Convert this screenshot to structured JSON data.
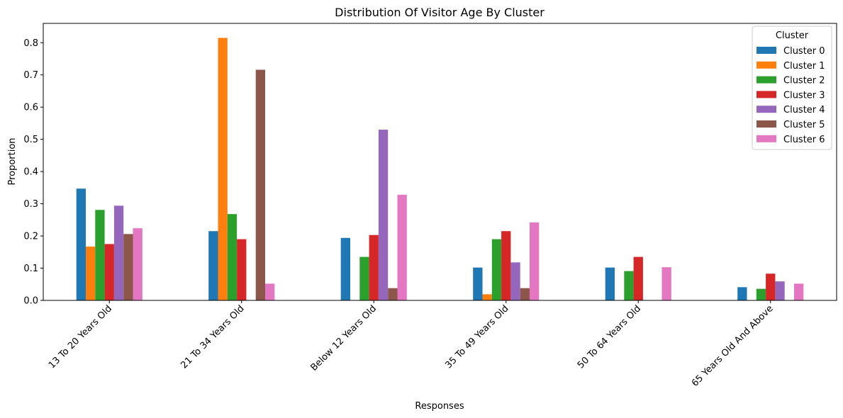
{
  "chart_data": {
    "type": "bar",
    "title": "Distribution Of Visitor Age By Cluster",
    "xlabel": "Responses",
    "ylabel": "Proportion",
    "ylim": [
      0,
      0.86
    ],
    "yticks": [
      "0.0",
      "0.1",
      "0.2",
      "0.3",
      "0.4",
      "0.5",
      "0.6",
      "0.7",
      "0.8"
    ],
    "categories": [
      "13 To 20 Years Old",
      "21 To 34 Years Old",
      "Below 12 Years Old",
      "35 To 49 Years Old",
      "50 To 64 Years Old",
      "65 Years Old And Above"
    ],
    "legend": {
      "title": "Cluster",
      "position": "top-right"
    },
    "grid": false,
    "series": [
      {
        "name": "Cluster 0",
        "color": "#1f77b4",
        "values": [
          0.347,
          0.215,
          0.194,
          0.102,
          0.102,
          0.041
        ]
      },
      {
        "name": "Cluster 1",
        "color": "#ff7f0e",
        "values": [
          0.167,
          0.815,
          0.0,
          0.019,
          0.0,
          0.0
        ]
      },
      {
        "name": "Cluster 2",
        "color": "#2ca02c",
        "values": [
          0.281,
          0.268,
          0.135,
          0.19,
          0.091,
          0.036
        ]
      },
      {
        "name": "Cluster 3",
        "color": "#d62728",
        "values": [
          0.175,
          0.19,
          0.203,
          0.215,
          0.135,
          0.083
        ]
      },
      {
        "name": "Cluster 4",
        "color": "#9467bd",
        "values": [
          0.294,
          0.0,
          0.53,
          0.118,
          0.0,
          0.059
        ]
      },
      {
        "name": "Cluster 5",
        "color": "#8c564b",
        "values": [
          0.206,
          0.716,
          0.038,
          0.038,
          0.0,
          0.0
        ]
      },
      {
        "name": "Cluster 6",
        "color": "#e377c2",
        "values": [
          0.224,
          0.052,
          0.328,
          0.242,
          0.103,
          0.052
        ]
      }
    ]
  }
}
